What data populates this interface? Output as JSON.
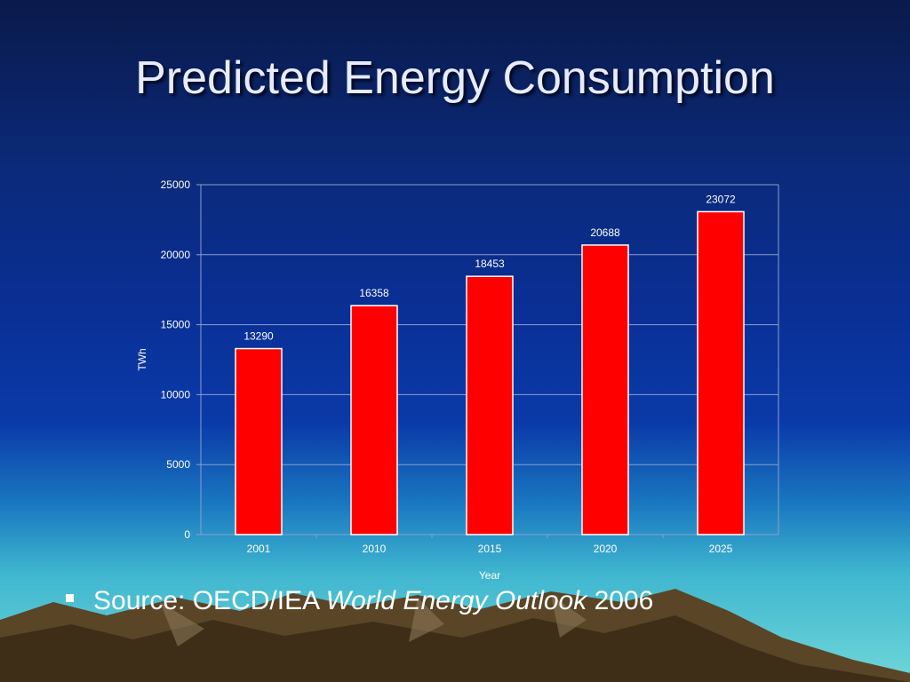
{
  "slide": {
    "title": "Predicted Energy Consumption",
    "source_prefix": "Source: OECD/IEA ",
    "source_italic": "World Energy Outlook",
    "source_suffix": " 2006"
  },
  "colors": {
    "bar": "#ff0000",
    "bar_outline": "#ffffff",
    "grid": "#8aa0d0",
    "text": "#ffffff"
  },
  "chart_data": {
    "type": "bar",
    "categories": [
      "2001",
      "2010",
      "2015",
      "2020",
      "2025"
    ],
    "values": [
      13290,
      16358,
      18453,
      20688,
      23072
    ],
    "data_labels": [
      "13290",
      "16358",
      "18453",
      "20688",
      "23072"
    ],
    "xlabel": "Year",
    "ylabel": "TWh",
    "ylim": [
      0,
      25000
    ],
    "yticks": [
      "0",
      "5000",
      "10000",
      "15000",
      "20000",
      "25000"
    ],
    "ytick_values": [
      0,
      5000,
      10000,
      15000,
      20000,
      25000
    ],
    "grid": true,
    "legend": "none"
  }
}
